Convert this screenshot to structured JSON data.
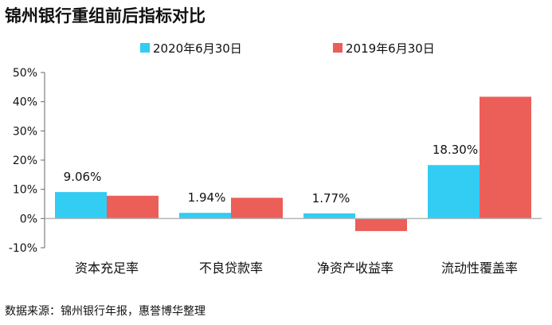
{
  "title": "锦州银行重组前后指标对比",
  "source": "数据来源：锦州银行年报，惠誉博华整理",
  "chart_data": {
    "type": "bar",
    "title": "锦州银行重组前后指标对比",
    "categories": [
      "资本充足率",
      "不良贷款率",
      "净资产收益率",
      "流动性覆盖率"
    ],
    "series": [
      {
        "name": "2020年6月30日",
        "color": "#33ccf3",
        "values": [
          9.06,
          1.94,
          1.77,
          18.3
        ]
      },
      {
        "name": "2019年6月30日",
        "color": "#ec5e58",
        "values": [
          7.8,
          7.1,
          -4.3,
          41.7
        ]
      }
    ],
    "data_labels": [
      "9.06%",
      "1.94%",
      "1.77%",
      "18.30%"
    ],
    "y_ticks": [
      "50%",
      "40%",
      "30%",
      "20%",
      "10%",
      "0%",
      "-10%"
    ],
    "ylim": [
      -10,
      50
    ],
    "grid": false,
    "legend_position": "top"
  }
}
